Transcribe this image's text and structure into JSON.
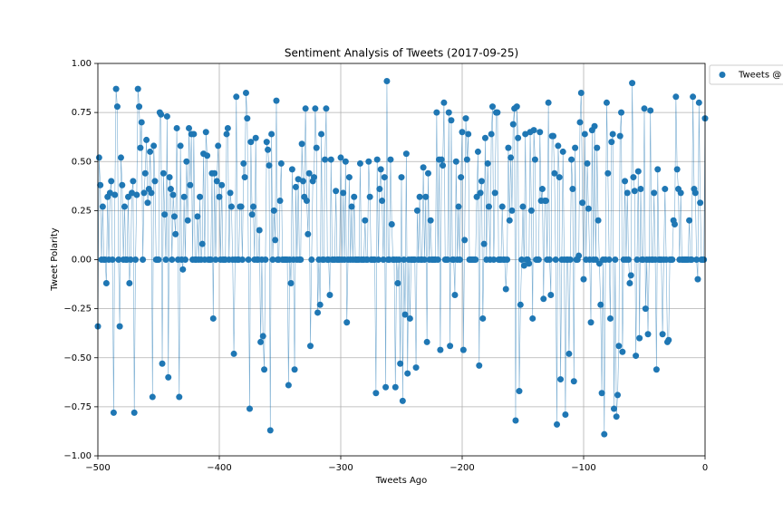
{
  "chart_data": {
    "type": "line",
    "title": "Sentiment Analysis of Tweets (2017-09-25)",
    "x_label": "Tweets Ago",
    "y_label": "Tweet Polarity",
    "x": [
      -500,
      -499,
      -498,
      -497,
      -496,
      -495,
      -494,
      -493,
      -492,
      -491,
      -490,
      -489,
      -488,
      -487,
      -486,
      -485,
      -484,
      -483,
      -482,
      -481,
      -480,
      -479,
      -478,
      -477,
      -476,
      -475,
      -474,
      -473,
      -472,
      -471,
      -470,
      -469,
      -468,
      -467,
      -466,
      -465,
      -464,
      -463,
      -462,
      -461,
      -460,
      -459,
      -458,
      -457,
      -456,
      -455,
      -454,
      -453,
      -452,
      -451,
      -450,
      -449,
      -448,
      -447,
      -446,
      -445,
      -444,
      -443,
      -442,
      -441,
      -440,
      -439,
      -438,
      -437,
      -436,
      -435,
      -434,
      -433,
      -432,
      -431,
      -430,
      -429,
      -428,
      -427,
      -426,
      -425,
      -424,
      -423,
      -422,
      -421,
      -420,
      -419,
      -418,
      -417,
      -416,
      -415,
      -414,
      -413,
      -412,
      -411,
      -410,
      -409,
      -408,
      -407,
      -406,
      -405,
      -404,
      -403,
      -402,
      -401,
      -400,
      -399,
      -398,
      -397,
      -396,
      -395,
      -394,
      -393,
      -392,
      -391,
      -390,
      -389,
      -388,
      -387,
      -386,
      -385,
      -384,
      -383,
      -382,
      -381,
      -380,
      -379,
      -378,
      -377,
      -376,
      -375,
      -374,
      -373,
      -372,
      -371,
      -370,
      -369,
      -368,
      -367,
      -366,
      -365,
      -364,
      -363,
      -362,
      -361,
      -360,
      -359,
      -358,
      -357,
      -356,
      -355,
      -354,
      -353,
      -352,
      -351,
      -350,
      -349,
      -348,
      -347,
      -346,
      -345,
      -344,
      -343,
      -342,
      -341,
      -340,
      -339,
      -338,
      -337,
      -336,
      -335,
      -334,
      -333,
      -332,
      -331,
      -330,
      -329,
      -328,
      -327,
      -326,
      -325,
      -324,
      -323,
      -322,
      -321,
      -320,
      -319,
      -318,
      -317,
      -316,
      -315,
      -314,
      -313,
      -312,
      -311,
      -310,
      -309,
      -308,
      -307,
      -306,
      -305,
      -304,
      -303,
      -302,
      -301,
      -300,
      -299,
      -298,
      -297,
      -296,
      -295,
      -294,
      -293,
      -292,
      -291,
      -290,
      -289,
      -288,
      -287,
      -286,
      -285,
      -284,
      -283,
      -282,
      -281,
      -280,
      -279,
      -278,
      -277,
      -276,
      -275,
      -274,
      -273,
      -272,
      -271,
      -270,
      -269,
      -268,
      -267,
      -266,
      -265,
      -264,
      -263,
      -262,
      -261,
      -260,
      -259,
      -258,
      -257,
      -256,
      -255,
      -254,
      -253,
      -252,
      -251,
      -250,
      -249,
      -248,
      -247,
      -246,
      -245,
      -244,
      -243,
      -242,
      -241,
      -240,
      -239,
      -238,
      -237,
      -236,
      -235,
      -234,
      -233,
      -232,
      -231,
      -230,
      -229,
      -228,
      -227,
      -226,
      -225,
      -224,
      -223,
      -222,
      -221,
      -220,
      -219,
      -218,
      -217,
      -216,
      -215,
      -214,
      -213,
      -212,
      -211,
      -210,
      -209,
      -208,
      -207,
      -206,
      -205,
      -204,
      -203,
      -202,
      -201,
      -200,
      -199,
      -198,
      -197,
      -196,
      -195,
      -194,
      -193,
      -192,
      -191,
      -190,
      -189,
      -188,
      -187,
      -186,
      -185,
      -184,
      -183,
      -182,
      -181,
      -180,
      -179,
      -178,
      -177,
      -176,
      -175,
      -174,
      -173,
      -172,
      -171,
      -170,
      -169,
      -168,
      -167,
      -166,
      -165,
      -164,
      -163,
      -162,
      -161,
      -160,
      -159,
      -158,
      -157,
      -156,
      -155,
      -154,
      -153,
      -152,
      -151,
      -150,
      -149,
      -148,
      -147,
      -146,
      -145,
      -144,
      -143,
      -142,
      -141,
      -140,
      -139,
      -138,
      -137,
      -136,
      -135,
      -134,
      -133,
      -132,
      -131,
      -130,
      -129,
      -128,
      -127,
      -126,
      -125,
      -124,
      -123,
      -122,
      -121,
      -120,
      -119,
      -118,
      -117,
      -116,
      -115,
      -114,
      -113,
      -112,
      -111,
      -110,
      -109,
      -108,
      -107,
      -106,
      -105,
      -104,
      -103,
      -102,
      -101,
      -100,
      -99,
      -98,
      -97,
      -96,
      -95,
      -94,
      -93,
      -92,
      -91,
      -90,
      -89,
      -88,
      -87,
      -86,
      -85,
      -84,
      -83,
      -82,
      -81,
      -80,
      -79,
      -78,
      -77,
      -76,
      -75,
      -74,
      -73,
      -72,
      -71,
      -70,
      -69,
      -68,
      -67,
      -66,
      -65,
      -64,
      -63,
      -62,
      -61,
      -60,
      -59,
      -58,
      -57,
      -56,
      -55,
      -54,
      -53,
      -52,
      -51,
      -50,
      -49,
      -48,
      -47,
      -46,
      -45,
      -44,
      -43,
      -42,
      -41,
      -40,
      -39,
      -38,
      -37,
      -36,
      -35,
      -34,
      -33,
      -32,
      -31,
      -30,
      -29,
      -28,
      -27,
      -26,
      -25,
      -24,
      -23,
      -22,
      -21,
      -20,
      -19,
      -18,
      -17,
      -16,
      -15,
      -14,
      -13,
      -12,
      -11,
      -10,
      -9,
      -8,
      -7,
      -6,
      -5,
      -4,
      -3,
      -2,
      -1,
      0
    ],
    "series": [
      {
        "name": "Tweets @",
        "color": "#1f77b4",
        "values": [
          -0.34,
          0.52,
          0.38,
          0,
          0.27,
          0,
          0,
          -0.12,
          0.32,
          0,
          0.34,
          0.4,
          0,
          -0.78,
          0.33,
          0.87,
          0.78,
          0,
          -0.34,
          0.52,
          0.38,
          0,
          0.27,
          0,
          0,
          0.32,
          -0.12,
          0,
          0.34,
          0.4,
          -0.78,
          0,
          0.33,
          0.87,
          0.78,
          0.57,
          0.7,
          0,
          0.34,
          0.44,
          0.61,
          0.29,
          0.36,
          0.55,
          0.34,
          -0.7,
          0.58,
          0.4,
          0,
          0,
          0,
          0.75,
          0.74,
          -0.53,
          0.44,
          0.23,
          0,
          0.73,
          -0.6,
          0.42,
          0.36,
          0,
          0.33,
          0.22,
          0.13,
          0.67,
          0,
          -0.7,
          0.58,
          0,
          -0.05,
          0.32,
          0,
          0.5,
          0.2,
          0.67,
          0.38,
          0.64,
          0,
          0.64,
          0,
          0,
          0.22,
          0,
          0.32,
          0,
          0.08,
          0.54,
          0,
          0.65,
          0.53,
          0,
          0,
          0,
          0.44,
          -0.3,
          0.44,
          0,
          0.4,
          0.58,
          0.32,
          0,
          0.38,
          0,
          0,
          0,
          0.64,
          0.67,
          0,
          0.34,
          0.27,
          0,
          -0.48,
          0,
          0.83,
          0,
          0,
          0.27,
          0.27,
          0,
          0.49,
          0.42,
          0.85,
          0.72,
          0,
          -0.76,
          0.6,
          0.23,
          0.27,
          0,
          0.62,
          0,
          0,
          0.15,
          -0.42,
          0,
          -0.39,
          -0.56,
          0,
          0.6,
          0.56,
          0.48,
          -0.87,
          0.64,
          0,
          0.25,
          0.1,
          0.81,
          0,
          0,
          0.3,
          0.49,
          0,
          0,
          0,
          0,
          0,
          -0.64,
          0,
          -0.12,
          0.46,
          0,
          -0.56,
          0.37,
          0,
          0.41,
          0,
          0,
          0.59,
          0.4,
          0.32,
          0.77,
          0.3,
          0.13,
          0.44,
          -0.44,
          0,
          0.4,
          0.42,
          0.77,
          0.57,
          -0.27,
          0,
          -0.23,
          0.64,
          0,
          0,
          0.51,
          0.77,
          0,
          0,
          -0.18,
          0.51,
          0,
          0,
          0,
          0.35,
          0,
          0,
          0,
          0.52,
          0,
          0.34,
          0,
          0.5,
          -0.32,
          0,
          0.42,
          0,
          0.27,
          0,
          0.32,
          0,
          0,
          0,
          0,
          0.49,
          0,
          0,
          0,
          0.2,
          0,
          0,
          0.5,
          0.32,
          0,
          0,
          0,
          0,
          -0.68,
          0.51,
          0,
          0.36,
          0.46,
          0.3,
          0,
          0.42,
          -0.65,
          0.91,
          0,
          0,
          0.51,
          0.18,
          0,
          0,
          -0.65,
          0,
          -0.12,
          0,
          -0.53,
          0.42,
          -0.72,
          0,
          -0.28,
          0.54,
          -0.58,
          0,
          -0.3,
          0,
          0,
          0,
          0,
          -0.55,
          0.25,
          0,
          0.32,
          0,
          0,
          0.47,
          0,
          0.32,
          -0.42,
          0.44,
          0,
          0.2,
          0,
          0,
          0,
          0,
          0.75,
          0,
          0.51,
          -0.46,
          0.51,
          0.48,
          0.8,
          0,
          0,
          0,
          0.75,
          -0.44,
          0.71,
          0,
          0,
          -0.18,
          0.5,
          0,
          0.27,
          0,
          0.42,
          0.65,
          -0.46,
          0.1,
          0.72,
          0.51,
          0.64,
          0,
          0,
          0,
          0,
          0,
          0,
          0.32,
          0.55,
          -0.54,
          0.34,
          0.4,
          -0.3,
          0.08,
          0.62,
          0,
          0.49,
          0.27,
          0,
          0.64,
          0.78,
          0,
          0.34,
          0.75,
          0.75,
          0,
          0,
          0,
          0.27,
          0,
          0,
          -0.15,
          0,
          0.57,
          0.2,
          0.52,
          0.25,
          0.69,
          0.77,
          -0.82,
          0.78,
          0.62,
          -0.67,
          -0.23,
          0,
          0.27,
          -0.03,
          0.64,
          0,
          0,
          -0.02,
          0.65,
          0.25,
          -0.3,
          0.66,
          0.51,
          0,
          0,
          0,
          0.65,
          0.3,
          0.36,
          -0.2,
          0.3,
          0.3,
          0,
          0.8,
          0,
          -0.18,
          0.63,
          0.63,
          0.44,
          0,
          -0.84,
          0.58,
          0.42,
          -0.61,
          0,
          0.55,
          0,
          -0.79,
          0,
          0,
          -0.48,
          0,
          0.51,
          0.36,
          -0.62,
          0.57,
          0,
          0,
          0.02,
          0.7,
          0.85,
          0.29,
          -0.1,
          0.64,
          0,
          0.49,
          0.26,
          0,
          -0.32,
          0.66,
          0,
          0.68,
          0,
          0.57,
          0.2,
          -0.02,
          -0.23,
          -0.68,
          0,
          -0.89,
          0,
          0.8,
          0.44,
          0,
          -0.3,
          0.6,
          0.64,
          -0.76,
          0,
          -0.8,
          -0.69,
          -0.44,
          0.63,
          0.75,
          -0.47,
          0,
          0.4,
          0,
          0.34,
          0,
          -0.12,
          -0.08,
          0.9,
          0.42,
          0.35,
          -0.49,
          0,
          0.45,
          -0.4,
          0.36,
          0,
          0,
          0.77,
          -0.25,
          0,
          -0.38,
          0,
          0.76,
          0,
          0,
          0.34,
          0,
          -0.56,
          0.46,
          0,
          0,
          0,
          -0.38,
          0,
          0.36,
          0,
          -0.42,
          -0.41,
          0,
          0,
          0,
          0.2,
          0.18,
          0.83,
          0.46,
          0.36,
          0,
          0.34,
          0,
          0,
          0,
          0,
          0,
          0,
          0.2,
          0,
          0,
          0.83,
          0.36,
          0.34,
          0,
          -0.1,
          0.8,
          0.29,
          0,
          0,
          0,
          0.72
        ]
      }
    ],
    "xlim": [
      -500,
      0
    ],
    "xticks": [
      -500,
      -400,
      -300,
      -200,
      -100,
      0
    ],
    "ylim": [
      -1,
      1
    ],
    "yticks": [
      {
        "value": -1,
        "label": "−1.00"
      },
      {
        "value": -0.75,
        "label": "−0.75"
      },
      {
        "value": -0.5,
        "label": "−0.50"
      },
      {
        "value": -0.25,
        "label": "−0.25"
      },
      {
        "value": 0,
        "label": "0.00"
      },
      {
        "value": 0.25,
        "label": "0.25"
      },
      {
        "value": 0.5,
        "label": "0.50"
      },
      {
        "value": 0.75,
        "label": "0.75"
      },
      {
        "value": 1,
        "label": "1.00"
      }
    ],
    "xtick_labels": [
      "−500",
      "−400",
      "−300",
      "−200",
      "−100",
      "0"
    ],
    "grid": true,
    "legend": "outside-upper-right"
  }
}
